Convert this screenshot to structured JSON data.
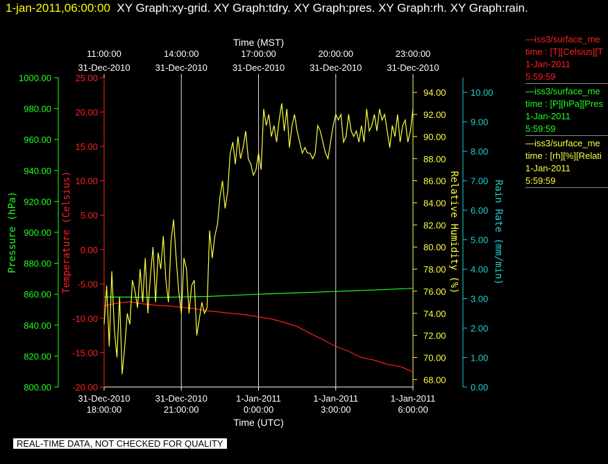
{
  "header": {
    "date": "1-jan-2011,06:00:00",
    "titles": "XY Graph:xy-grid.  XY Graph:tdry.  XY Graph:pres.  XY Graph:rh.  XY Graph:rain."
  },
  "footer": {
    "notice": "REAL-TIME DATA, NOT CHECKED FOR QUALITY"
  },
  "legend": [
    {
      "line1": "iss3/surface_me",
      "line2": "time : [T][Celsius][T",
      "line3": "1-Jan-2011",
      "line4": "5:59:59",
      "color": "#ff2020"
    },
    {
      "line1": "iss3/surface_me",
      "line2": "time : [P][hPa][Pres",
      "line3": "1-Jan-2011",
      "line4": "5:59:59",
      "color": "#20ff20"
    },
    {
      "line1": "iss3/surface_me",
      "line2": "time : [rh][%][Relati",
      "line3": "1-Jan-2011",
      "line4": "5:59:59",
      "color": "#ffff40"
    }
  ],
  "chart_data": {
    "type": "line",
    "x_axis_bottom": {
      "label": "Time (UTC)",
      "ticks": [
        {
          "line1": "31-Dec-2010",
          "line2": "18:00:00",
          "hours": 0
        },
        {
          "line1": "31-Dec-2010",
          "line2": "21:00:00",
          "hours": 3
        },
        {
          "line1": "1-Jan-2011",
          "line2": "0:00:00",
          "hours": 6
        },
        {
          "line1": "1-Jan-2011",
          "line2": "3:00:00",
          "hours": 9
        },
        {
          "line1": "1-Jan-2011",
          "line2": "6:00:00",
          "hours": 12
        }
      ]
    },
    "x_axis_top": {
      "label": "Time (MST)",
      "ticks": [
        {
          "line1": "11:00:00",
          "line2": "31-Dec-2010",
          "hours": 0
        },
        {
          "line1": "14:00:00",
          "line2": "31-Dec-2010",
          "hours": 3
        },
        {
          "line1": "17:00:00",
          "line2": "31-Dec-2010",
          "hours": 6
        },
        {
          "line1": "20:00:00",
          "line2": "31-Dec-2010",
          "hours": 9
        },
        {
          "line1": "23:00:00",
          "line2": "31-Dec-2010",
          "hours": 12
        }
      ]
    },
    "xlim": [
      0,
      12
    ],
    "grid": true,
    "axes": {
      "pressure": {
        "label": "Pressure (hPa)",
        "color": "#20ff20",
        "ylim": [
          800,
          1000
        ],
        "ticks": [
          "800.00",
          "820.00",
          "840.00",
          "860.00",
          "880.00",
          "900.00",
          "920.00",
          "940.00",
          "960.00",
          "980.00",
          "1000.00"
        ]
      },
      "temperature": {
        "label": "Temperature (Celsius)",
        "color": "#ff2020",
        "ylim": [
          -20,
          25
        ],
        "ticks": [
          "-20.00",
          "-15.00",
          "-10.00",
          "-5.00",
          "0.00",
          "5.00",
          "10.00",
          "15.00",
          "20.00",
          "25.00"
        ]
      },
      "rh": {
        "label": "Relative Humidity (%)",
        "color": "#ffff40",
        "ylim": [
          67.33,
          95.33
        ],
        "ticks": [
          "68.00",
          "70.00",
          "72.00",
          "74.00",
          "76.00",
          "78.00",
          "80.00",
          "82.00",
          "84.00",
          "86.00",
          "88.00",
          "90.00",
          "92.00",
          "94.00"
        ]
      },
      "rain": {
        "label": "Rain Rate (mm/min)",
        "color": "#20d0d0",
        "ylim": [
          0,
          10.5
        ],
        "ticks": [
          "0.00",
          "1.00",
          "2.00",
          "3.00",
          "4.00",
          "5.00",
          "6.00",
          "7.00",
          "8.00",
          "9.00",
          "10.00"
        ]
      }
    },
    "series": [
      {
        "name": "iss3/surface_me T",
        "axis": "temperature",
        "color": "#ff2020",
        "x": [
          0,
          0.5,
          1,
          1.5,
          2,
          2.5,
          3,
          3.5,
          4,
          4.5,
          5,
          5.5,
          6,
          6.5,
          7,
          7.5,
          8,
          8.5,
          9,
          9.5,
          10,
          10.5,
          11,
          11.5,
          12
        ],
        "y": [
          -8.2,
          -7.8,
          -7.6,
          -7.9,
          -8.1,
          -8.2,
          -8.4,
          -8.6,
          -8.9,
          -9.1,
          -9.3,
          -9.5,
          -9.8,
          -10.1,
          -10.6,
          -11.2,
          -12.2,
          -13.1,
          -14.1,
          -14.8,
          -15.7,
          -16.1,
          -16.7,
          -17.0,
          -17.8
        ]
      },
      {
        "name": "iss3/surface_me P",
        "axis": "pressure",
        "color": "#20ff20",
        "x": [
          0,
          1,
          2,
          3,
          4,
          5,
          6,
          7,
          8,
          9,
          10,
          11,
          12
        ],
        "y": [
          858.2,
          858.1,
          858.0,
          858.2,
          858.5,
          859.3,
          860.0,
          860.6,
          861.2,
          861.8,
          862.4,
          863.1,
          863.8
        ]
      },
      {
        "name": "iss3/surface_me rh",
        "axis": "rh",
        "color": "#ffff40",
        "x": [
          0,
          0.1,
          0.2,
          0.3,
          0.4,
          0.5,
          0.6,
          0.7,
          0.8,
          0.9,
          1.0,
          1.1,
          1.2,
          1.3,
          1.4,
          1.5,
          1.6,
          1.7,
          1.8,
          1.9,
          2.0,
          2.1,
          2.2,
          2.3,
          2.4,
          2.5,
          2.6,
          2.7,
          2.8,
          2.9,
          3.0,
          3.1,
          3.2,
          3.3,
          3.4,
          3.5,
          3.6,
          3.7,
          3.8,
          3.9,
          4.0,
          4.1,
          4.2,
          4.3,
          4.4,
          4.5,
          4.6,
          4.7,
          4.8,
          4.9,
          5.0,
          5.1,
          5.2,
          5.3,
          5.4,
          5.5,
          5.6,
          5.7,
          5.8,
          5.9,
          6.0,
          6.1,
          6.2,
          6.3,
          6.4,
          6.5,
          6.6,
          6.7,
          6.8,
          6.9,
          7.0,
          7.1,
          7.2,
          7.3,
          7.4,
          7.5,
          7.6,
          7.7,
          7.8,
          7.9,
          8.0,
          8.1,
          8.2,
          8.3,
          8.4,
          8.5,
          8.6,
          8.7,
          8.8,
          8.9,
          9.0,
          9.1,
          9.2,
          9.3,
          9.4,
          9.5,
          9.6,
          9.7,
          9.8,
          9.9,
          10.0,
          10.1,
          10.2,
          10.3,
          10.4,
          10.5,
          10.6,
          10.7,
          10.8,
          10.9,
          11.0,
          11.1,
          11.2,
          11.3,
          11.4,
          11.5,
          11.6,
          11.7,
          11.8,
          11.9,
          12.0
        ],
        "y": [
          73.0,
          76.5,
          71.0,
          77.8,
          72.5,
          70.0,
          75.5,
          68.5,
          71.0,
          74.0,
          73.0,
          77.0,
          76.0,
          74.5,
          78.0,
          75.0,
          79.0,
          74.0,
          77.5,
          80.0,
          75.0,
          79.5,
          78.0,
          81.0,
          77.0,
          75.0,
          80.5,
          82.5,
          79.0,
          76.0,
          74.0,
          79.0,
          78.0,
          74.0,
          76.5,
          77.0,
          72.0,
          73.5,
          75.0,
          74.0,
          74.5,
          81.5,
          79.0,
          81.0,
          82.0,
          84.5,
          86.0,
          83.5,
          85.0,
          88.5,
          89.5,
          87.5,
          90.0,
          88.0,
          89.0,
          90.5,
          88.0,
          87.5,
          86.5,
          87.0,
          88.5,
          87.0,
          92.5,
          91.0,
          92.0,
          90.0,
          91.0,
          89.5,
          91.5,
          93.0,
          90.5,
          92.5,
          89.0,
          91.0,
          92.0,
          90.5,
          89.5,
          88.5,
          89.0,
          88.5,
          88.5,
          88.0,
          88.5,
          91.0,
          90.5,
          89.5,
          88.5,
          88.0,
          89.5,
          91.0,
          92.0,
          91.5,
          92.0,
          89.5,
          90.0,
          92.0,
          90.5,
          90.0,
          90.5,
          89.5,
          91.0,
          89.5,
          92.5,
          90.5,
          91.0,
          92.0,
          90.5,
          92.5,
          91.5,
          92.0,
          90.5,
          89.0,
          91.0,
          90.0,
          92.0,
          89.5,
          91.0,
          91.5,
          89.5,
          90.5,
          92.5
        ]
      }
    ]
  }
}
